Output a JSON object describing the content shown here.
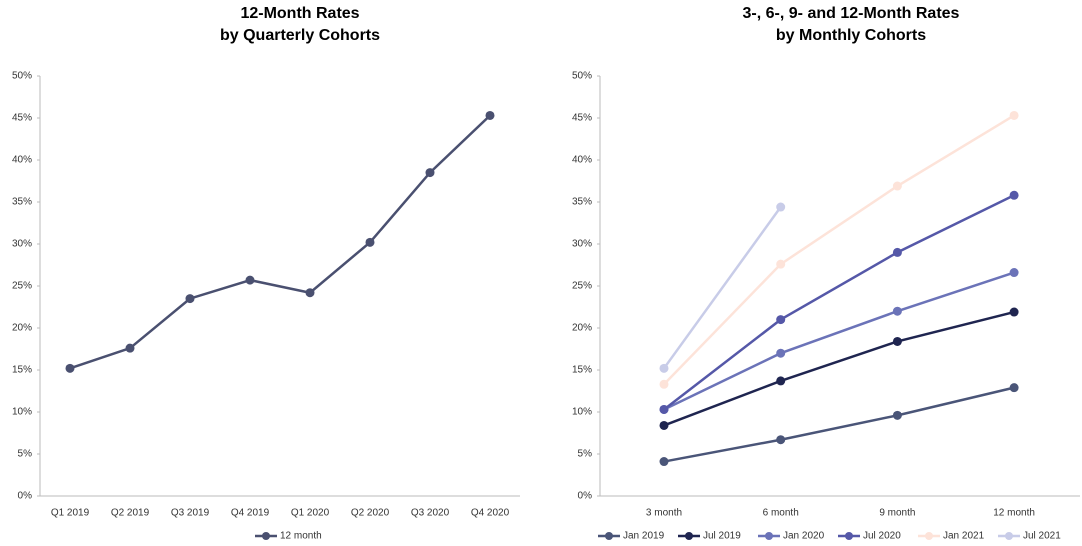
{
  "chart_data": [
    {
      "type": "line",
      "title": "12-Month Rates\nby Quarterly Cohorts",
      "categories": [
        "Q1 2019",
        "Q2 2019",
        "Q3 2019",
        "Q4 2019",
        "Q1 2020",
        "Q2 2020",
        "Q3 2020",
        "Q4 2020"
      ],
      "series": [
        {
          "name": "12 month",
          "color": "#4a5070",
          "values": [
            15.2,
            17.6,
            23.5,
            25.7,
            24.2,
            30.2,
            38.5,
            45.3
          ]
        }
      ],
      "ylim": [
        0,
        50
      ],
      "yticks": [
        {
          "value": 0,
          "label": "0%"
        },
        {
          "value": 5,
          "label": "5%"
        },
        {
          "value": 10,
          "label": "10%"
        },
        {
          "value": 15,
          "label": "15%"
        },
        {
          "value": 20,
          "label": "20%"
        },
        {
          "value": 25,
          "label": "25%"
        },
        {
          "value": 30,
          "label": "30%"
        },
        {
          "value": 35,
          "label": "35%"
        },
        {
          "value": 40,
          "label": "40%"
        },
        {
          "value": 45,
          "label": "45%"
        },
        {
          "value": 50,
          "label": "50%"
        }
      ],
      "legend": "bottom"
    },
    {
      "type": "line",
      "title": "3-, 6-, 9- and 12-Month Rates\nby Monthly Cohorts",
      "categories": [
        "3 month",
        "6 month",
        "9 month",
        "12 month"
      ],
      "series": [
        {
          "name": "Jan 2019",
          "color": "#4a5578",
          "values": [
            4.1,
            6.7,
            9.6,
            12.9
          ]
        },
        {
          "name": "Jul 2019",
          "color": "#1f2550",
          "values": [
            8.4,
            13.7,
            18.4,
            21.9
          ]
        },
        {
          "name": "Jan 2020",
          "color": "#6b73b8",
          "values": [
            10.3,
            17.0,
            22.0,
            26.6
          ]
        },
        {
          "name": "Jul 2020",
          "color": "#5558a8",
          "values": [
            10.3,
            21.0,
            29.0,
            35.8
          ]
        },
        {
          "name": "Jan 2021",
          "color": "#fde3d9",
          "values": [
            13.3,
            27.6,
            36.9,
            45.3
          ]
        },
        {
          "name": "Jul 2021",
          "color": "#c8cce8",
          "values": [
            15.2,
            34.4,
            null,
            null
          ]
        }
      ],
      "ylim": [
        0,
        50
      ],
      "yticks": [
        {
          "value": 0,
          "label": "0%"
        },
        {
          "value": 5,
          "label": "5%"
        },
        {
          "value": 10,
          "label": "10%"
        },
        {
          "value": 15,
          "label": "15%"
        },
        {
          "value": 20,
          "label": "20%"
        },
        {
          "value": 25,
          "label": "25%"
        },
        {
          "value": 30,
          "label": "30%"
        },
        {
          "value": 35,
          "label": "35%"
        },
        {
          "value": 40,
          "label": "40%"
        },
        {
          "value": 45,
          "label": "45%"
        },
        {
          "value": 50,
          "label": "50%"
        }
      ],
      "legend": "bottom"
    }
  ]
}
